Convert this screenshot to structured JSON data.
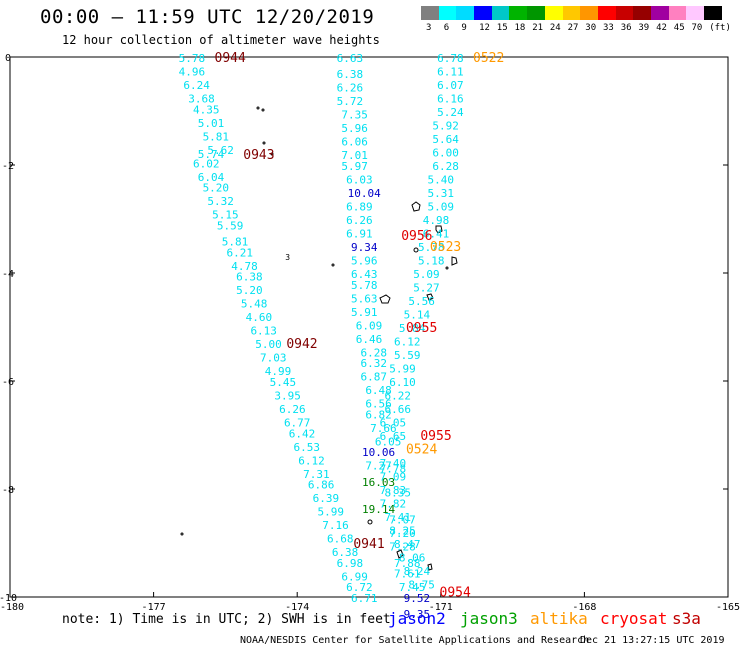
{
  "header": {
    "title": "00:00 – 11:59 UTC 12/20/2019",
    "subtitle": "12 hour collection of altimeter wave heights"
  },
  "legend": {
    "colors": [
      "#808080",
      "#00ffff",
      "#00dcff",
      "#0000ff",
      "#00c8c8",
      "#00b400",
      "#009600",
      "#ffff00",
      "#ffc800",
      "#ff9600",
      "#ff0000",
      "#c80000",
      "#960000",
      "#a000a0",
      "#ff80c0",
      "#ffc8ff",
      "#000000"
    ],
    "labels": [
      "3",
      "6",
      "9",
      "12",
      "15",
      "18",
      "21",
      "24",
      "27",
      "30",
      "33",
      "36",
      "39",
      "42",
      "45",
      "70",
      "(ft)"
    ]
  },
  "axes": {
    "x_ticks": [
      "-180",
      "-177",
      "-174",
      "-171",
      "-168",
      "-165"
    ],
    "y_ticks": [
      "0",
      "-2",
      "-4",
      "-6",
      "-8",
      "-10"
    ]
  },
  "tracks": [
    {
      "satellite": "sentinel-3a",
      "color": "#00e0f0",
      "readings": [
        [
          "-176.2",
          "0",
          "5.78"
        ],
        [
          "-176.2",
          "-0.25",
          "4.96"
        ],
        [
          "-176.1",
          "-0.5",
          "6.24"
        ],
        [
          "-176.0",
          "-0.75",
          "3.68"
        ],
        [
          "-175.9",
          "-0.95",
          "4.35"
        ],
        [
          "-175.8",
          "-1.2",
          "5.01"
        ],
        [
          "-175.7",
          "-1.45",
          "5.81"
        ],
        [
          "-175.6",
          "-1.7",
          "5.62"
        ],
        [
          "-175.8",
          "-1.78",
          "5.74"
        ],
        [
          "-175.9",
          "-1.95",
          "6.02"
        ],
        [
          "-175.8",
          "-2.2",
          "6.04"
        ],
        [
          "-175.7",
          "-2.4",
          "5.20"
        ],
        [
          "-175.6",
          "-2.65",
          "5.32"
        ],
        [
          "-175.5",
          "-2.9",
          "5.15"
        ],
        [
          "-175.4",
          "-3.1",
          "5.59"
        ],
        [
          "-175.3",
          "-3.4",
          "5.81"
        ],
        [
          "-175.2",
          "-3.6",
          "6.21"
        ],
        [
          "-175.1",
          "-3.85",
          "4.78"
        ],
        [
          "-175.0",
          "-4.05",
          "6.38"
        ],
        [
          "-175.0",
          "-4.3",
          "5.20"
        ],
        [
          "-174.9",
          "-4.55",
          "5.48"
        ],
        [
          "-174.8",
          "-4.8",
          "4.60"
        ],
        [
          "-174.7",
          "-5.05",
          "6.13"
        ],
        [
          "-174.6",
          "-5.3",
          "5.00"
        ],
        [
          "-174.5",
          "-5.55",
          "7.03"
        ],
        [
          "-174.4",
          "-5.8",
          "4.99"
        ],
        [
          "-174.3",
          "-6.0",
          "5.45"
        ],
        [
          "-174.2",
          "-6.25",
          "3.95"
        ],
        [
          "-174.1",
          "-6.5",
          "6.26"
        ],
        [
          "-174.0",
          "-6.75",
          "6.77"
        ],
        [
          "-173.9",
          "-6.95",
          "6.42"
        ],
        [
          "-173.8",
          "-7.2",
          "6.53"
        ],
        [
          "-173.7",
          "-7.45",
          "6.12"
        ],
        [
          "-173.6",
          "-7.7",
          "7.31"
        ],
        [
          "-173.5",
          "-7.9",
          "6.86"
        ],
        [
          "-173.4",
          "-8.15",
          "6.39"
        ],
        [
          "-173.3",
          "-8.4",
          "5.99"
        ],
        [
          "-173.2",
          "-8.65",
          "7.16"
        ],
        [
          "-173.1",
          "-8.9",
          "6.68"
        ],
        [
          "-173.0",
          "-9.15",
          "6.38"
        ],
        [
          "-172.9",
          "-9.35",
          "6.98"
        ],
        [
          "-172.8",
          "-9.6",
          "6.99"
        ],
        [
          "-172.7",
          "-9.8",
          "6.72"
        ],
        [
          "-172.6",
          "-10.0",
          "6.71"
        ]
      ]
    },
    {
      "satellite": "sentinel-3a",
      "color": "#00e0f0",
      "readings": [
        [
          "-172.9",
          "0",
          "6.63"
        ],
        [
          "-172.9",
          "-0.3",
          "6.38"
        ],
        [
          "-172.9",
          "-0.55",
          "6.26"
        ],
        [
          "-172.9",
          "-0.8",
          "5.72"
        ],
        [
          "-172.8",
          "-1.05",
          "7.35"
        ],
        [
          "-172.8",
          "-1.3",
          "5.96"
        ],
        [
          "-172.8",
          "-1.55",
          "6.06"
        ],
        [
          "-172.8",
          "-1.8",
          "7.01"
        ],
        [
          "-172.8",
          "-2.0",
          "5.97"
        ],
        [
          "-172.7",
          "-2.25",
          "6.03"
        ],
        [
          "-172.7",
          "-2.75",
          "6.89"
        ],
        [
          "-172.7",
          "-3.0",
          "6.26"
        ],
        [
          "-172.7",
          "-3.25",
          "6.91"
        ],
        [
          "-172.6",
          "-3.75",
          "5.96"
        ],
        [
          "-172.6",
          "-4.0",
          "6.43"
        ],
        [
          "-172.6",
          "-4.2",
          "5.78"
        ],
        [
          "-172.6",
          "-4.45",
          "5.63"
        ],
        [
          "-172.6",
          "-4.7",
          "5.91"
        ],
        [
          "-172.5",
          "-4.95",
          "6.09"
        ],
        [
          "-172.5",
          "-5.2",
          "6.46"
        ],
        [
          "-172.4",
          "-5.45",
          "6.28"
        ],
        [
          "-172.4",
          "-5.65",
          "6.32"
        ],
        [
          "-172.4",
          "-5.9",
          "6.87"
        ],
        [
          "-172.3",
          "-6.15",
          "6.48"
        ],
        [
          "-172.3",
          "-6.4",
          "6.56"
        ],
        [
          "-172.3",
          "-6.6",
          "6.82"
        ],
        [
          "-172.2",
          "-6.85",
          "7.66"
        ],
        [
          "-172.1",
          "-7.1",
          "6.05"
        ],
        [
          "-172.0",
          "-7.6",
          "7.78"
        ],
        [
          "-171.9",
          "-8.05",
          "8.35"
        ],
        [
          "-171.8",
          "-8.55",
          "7.07"
        ],
        [
          "-171.8",
          "-8.8",
          "7.20"
        ],
        [
          "-171.8",
          "-9.05",
          "7.28"
        ],
        [
          "-171.7",
          "-9.35",
          "7.88"
        ],
        [
          "-171.7",
          "-9.55",
          "7.61"
        ],
        [
          "-171.6",
          "-9.8",
          "7.45"
        ]
      ]
    },
    {
      "satellite": "sentinel-3a",
      "color": "#00e0f0",
      "readings": [
        [
          "-170.8",
          "0",
          "6.78"
        ],
        [
          "-170.8",
          "-0.25",
          "6.11"
        ],
        [
          "-170.8",
          "-0.5",
          "6.07"
        ],
        [
          "-170.8",
          "-0.75",
          "6.16"
        ],
        [
          "-170.8",
          "-1.0",
          "5.24"
        ],
        [
          "-170.9",
          "-1.25",
          "5.92"
        ],
        [
          "-170.9",
          "-1.5",
          "5.64"
        ],
        [
          "-170.9",
          "-1.75",
          "6.00"
        ],
        [
          "-170.9",
          "-2.0",
          "6.28"
        ],
        [
          "-171.0",
          "-2.25",
          "5.40"
        ],
        [
          "-171.0",
          "-2.5",
          "5.31"
        ],
        [
          "-171.0",
          "-2.75",
          "5.09"
        ],
        [
          "-171.1",
          "-3.0",
          "4.98"
        ],
        [
          "-171.1",
          "-3.25",
          "6.41"
        ],
        [
          "-171.2",
          "-3.5",
          "5.78"
        ],
        [
          "-171.2",
          "-3.75",
          "5.18"
        ],
        [
          "-171.3",
          "-4.0",
          "5.09"
        ],
        [
          "-171.3",
          "-4.25",
          "5.27"
        ],
        [
          "-171.4",
          "-4.5",
          "5.56"
        ],
        [
          "-171.5",
          "-4.75",
          "5.14"
        ],
        [
          "-171.6",
          "-5.0",
          "5.84"
        ],
        [
          "-171.7",
          "-5.25",
          "6.12"
        ],
        [
          "-171.7",
          "-5.5",
          "5.59"
        ],
        [
          "-171.8",
          "-5.75",
          "5.99"
        ],
        [
          "-171.8",
          "-6.0",
          "6.10"
        ],
        [
          "-171.9",
          "-6.25",
          "6.22"
        ],
        [
          "-171.9",
          "-6.5",
          "6.66"
        ],
        [
          "-172.0",
          "-6.75",
          "6.05"
        ],
        [
          "-172.0",
          "-7.0",
          "6.65"
        ],
        [
          "-172.0",
          "-7.5",
          "7.40"
        ],
        [
          "-172.0",
          "-7.75",
          "7.09"
        ],
        [
          "-172.0",
          "-8.0",
          "7.83"
        ],
        [
          "-172.0",
          "-8.25",
          "7.82"
        ],
        [
          "-171.9",
          "-8.5",
          "7.41"
        ],
        [
          "-171.8",
          "-8.75",
          "8.25"
        ],
        [
          "-171.7",
          "-9.0",
          "8.47"
        ],
        [
          "-171.6",
          "-9.25",
          "8.06"
        ],
        [
          "-171.5",
          "-9.5",
          "8.24"
        ],
        [
          "-171.4",
          "-9.75",
          "8.75"
        ]
      ]
    },
    {
      "satellite": "jason-2",
      "color": "#0000c8",
      "readings": [
        [
          "-172.6",
          "-2.5",
          "10.04"
        ],
        [
          "-172.6",
          "-3.5",
          "9.34"
        ],
        [
          "-172.3",
          "-7.3",
          "10.06"
        ],
        [
          "-171.5",
          "-10.0",
          "9.52"
        ],
        [
          "-171.5",
          "-10.3",
          "9.35"
        ]
      ]
    },
    {
      "satellite": "jason-3",
      "color": "#008000",
      "readings": [
        [
          "-172.3",
          "-7.85",
          "16.03"
        ],
        [
          "-172.3",
          "-8.35",
          "19.14"
        ]
      ]
    },
    {
      "satellite": "sentinel-3a",
      "color": "#00e0f0",
      "readings": [
        [
          "-172.3",
          "-7.55",
          "7.27"
        ]
      ]
    }
  ],
  "time_labels": [
    {
      "lon": "-175.4",
      "lat": "0",
      "text": "0944",
      "color": "#800000"
    },
    {
      "lon": "-170.0",
      "lat": "0",
      "text": "0522",
      "color": "#ff9900"
    },
    {
      "lon": "-174.8",
      "lat": "-1.8",
      "text": "0943",
      "color": "#800000"
    },
    {
      "lon": "-171.5",
      "lat": "-3.3",
      "text": "0956",
      "color": "#e00000"
    },
    {
      "lon": "-170.9",
      "lat": "-3.5",
      "text": "0523",
      "color": "#ff9900"
    },
    {
      "lon": "-173.9",
      "lat": "-5.3",
      "text": "0942",
      "color": "#800000"
    },
    {
      "lon": "-171.4",
      "lat": "-5.0",
      "text": "0955",
      "color": "#e00000"
    },
    {
      "lon": "-171.1",
      "lat": "-7.0",
      "text": "0955",
      "color": "#e00000"
    },
    {
      "lon": "-171.4",
      "lat": "-7.25",
      "text": "0524",
      "color": "#ff9900"
    },
    {
      "lon": "-172.5",
      "lat": "-9.0",
      "text": "0941",
      "color": "#800000"
    },
    {
      "lon": "-170.7",
      "lat": "-9.9",
      "text": "0954",
      "color": "#e00000"
    }
  ],
  "misc_map_text": [
    {
      "lon": "-174.2",
      "lat": "-3.7",
      "text": "3"
    }
  ],
  "footer": {
    "note": "note: 1) Time is in UTC; 2) SWH is in feet",
    "satellites": [
      {
        "name": "jason2",
        "color": "#0000ff"
      },
      {
        "name": "jason3",
        "color": "#00a000"
      },
      {
        "name": "altika",
        "color": "#ff9900"
      },
      {
        "name": "cryosat",
        "color": "#ff0000"
      },
      {
        "name": "s3a",
        "color": "#c00000"
      }
    ],
    "credit": "NOAA/NESDIS Center for Satellite Applications and Research",
    "timestamp": "Dec 21 13:27:15 UTC 2019"
  }
}
